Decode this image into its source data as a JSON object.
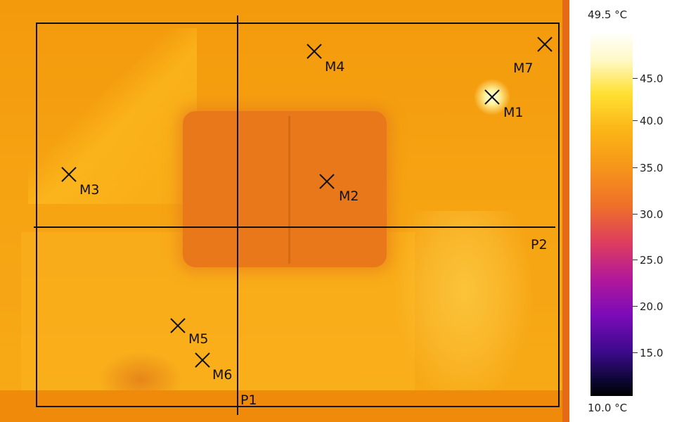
{
  "scale": {
    "max_label": "49.5 °C",
    "min_label": "10.0 °C",
    "ticks": [
      "45.0",
      "40.0",
      "35.0",
      "30.0",
      "25.0",
      "20.0",
      "15.0"
    ]
  },
  "markers": [
    "M1",
    "M2",
    "M3",
    "M4",
    "M5",
    "M6",
    "M7"
  ],
  "profile_lines": [
    "P1",
    "P2"
  ]
}
